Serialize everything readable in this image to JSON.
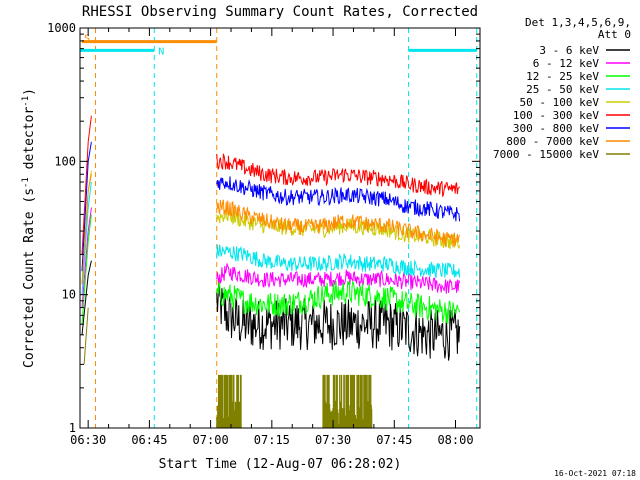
{
  "chart_data": {
    "type": "line",
    "title": "RHESSI Observing Summary Count Rates, Corrected",
    "xlabel": "Start Time (12-Aug-07 06:28:02)",
    "ylabel_main": "Corrected Count Rate (s",
    "ylabel_sup1": "-1",
    "ylabel_mid": " detector",
    "ylabel_sup2": "-1",
    "ylabel_end": ")",
    "y_scale": "log",
    "ylim": [
      1,
      1000
    ],
    "xlim_minutes": [
      0,
      98
    ],
    "x_ticks": [
      {
        "minute": 2,
        "label": "06:30"
      },
      {
        "minute": 17,
        "label": "06:45"
      },
      {
        "minute": 32,
        "label": "07:00"
      },
      {
        "minute": 47,
        "label": "07:15"
      },
      {
        "minute": 62,
        "label": "07:30"
      },
      {
        "minute": 77,
        "label": "07:45"
      },
      {
        "minute": 92,
        "label": "08:00"
      }
    ],
    "y_ticks": [
      {
        "value": 1,
        "label": "1"
      },
      {
        "value": 10,
        "label": "10"
      },
      {
        "value": 100,
        "label": "100"
      },
      {
        "value": 1000,
        "label": "1000"
      }
    ],
    "grid": false,
    "legend_header": [
      "Det 1,3,4,5,6,9,",
      "Att 0"
    ],
    "legend_position": "right",
    "footer_timestamp": "16-Oct-2021 07:18",
    "markers": [
      {
        "label": "S",
        "color": "#ff8c00",
        "minute_start": 0.5,
        "minute_end": 33.5,
        "level": 790
      },
      {
        "label": "N",
        "color": "#00e5ee",
        "minute_start": -0.2,
        "minute_end": 18.2,
        "level": 680
      }
    ],
    "marker_vlines": [
      {
        "color": "#00e5ee",
        "minute": -0.2
      },
      {
        "color": "#ff8c00",
        "minute": 3.8
      },
      {
        "color": "#00e5ee",
        "minute": 18.2
      },
      {
        "color": "#ff8c00",
        "minute": 33.5
      },
      {
        "color": "#00e5ee",
        "minute": 80.5
      },
      {
        "color": "#00e5ee",
        "minute": 97.2
      }
    ],
    "marker_hlines": [
      {
        "color": "#00e5ee",
        "minute_start": 80.5,
        "minute_end": 97.2,
        "level": 680
      }
    ],
    "series": [
      {
        "name": "3 - 6 keV",
        "color": "#000000",
        "early": [
          [
            0.5,
            5
          ],
          [
            2.0,
            14
          ],
          [
            2.8,
            18
          ]
        ],
        "points": [
          [
            33.5,
            9
          ],
          [
            36,
            7
          ],
          [
            40,
            6
          ],
          [
            45,
            6
          ],
          [
            50,
            6
          ],
          [
            55,
            6
          ],
          [
            60,
            6
          ],
          [
            65,
            6
          ],
          [
            70,
            6
          ],
          [
            75,
            6
          ],
          [
            80,
            5.5
          ],
          [
            85,
            5
          ],
          [
            90,
            5
          ],
          [
            93,
            5
          ]
        ]
      },
      {
        "name": "6 - 12 keV",
        "color": "#ff00ff",
        "early": [
          [
            0.5,
            8
          ],
          [
            2.0,
            30
          ],
          [
            2.8,
            45
          ]
        ],
        "points": [
          [
            33.5,
            13
          ],
          [
            36,
            15
          ],
          [
            40,
            14
          ],
          [
            45,
            13
          ],
          [
            50,
            13
          ],
          [
            55,
            13
          ],
          [
            60,
            13
          ],
          [
            65,
            13.5
          ],
          [
            70,
            13
          ],
          [
            75,
            13
          ],
          [
            80,
            12.5
          ],
          [
            85,
            12
          ],
          [
            90,
            11.5
          ],
          [
            93,
            11.5
          ]
        ]
      },
      {
        "name": "12 - 25 keV",
        "color": "#00ff00",
        "early": [
          [
            0.5,
            6
          ],
          [
            2.0,
            25
          ],
          [
            2.8,
            40
          ]
        ],
        "points": [
          [
            33.5,
            10
          ],
          [
            36,
            10
          ],
          [
            40,
            9
          ],
          [
            45,
            8.5
          ],
          [
            50,
            8.5
          ],
          [
            55,
            9
          ],
          [
            60,
            10
          ],
          [
            65,
            10.5
          ],
          [
            70,
            10
          ],
          [
            75,
            9.5
          ],
          [
            80,
            8.5
          ],
          [
            85,
            8
          ],
          [
            90,
            7.5
          ],
          [
            93,
            7.5
          ]
        ]
      },
      {
        "name": "25 - 50 keV",
        "color": "#00e5ee",
        "early": [
          [
            0.5,
            10
          ],
          [
            2.0,
            45
          ],
          [
            2.8,
            70
          ]
        ],
        "points": [
          [
            33.5,
            21
          ],
          [
            36,
            21
          ],
          [
            40,
            20
          ],
          [
            45,
            18
          ],
          [
            50,
            17
          ],
          [
            55,
            17
          ],
          [
            60,
            17
          ],
          [
            65,
            18
          ],
          [
            70,
            17
          ],
          [
            75,
            17
          ],
          [
            80,
            16
          ],
          [
            85,
            15.5
          ],
          [
            90,
            15
          ],
          [
            93,
            15
          ]
        ]
      },
      {
        "name": "50 - 100 keV",
        "color": "#cccc00",
        "early": [
          [
            0.5,
            12
          ],
          [
            2.0,
            60
          ],
          [
            2.8,
            85
          ]
        ],
        "points": [
          [
            33.5,
            38
          ],
          [
            36,
            40
          ],
          [
            40,
            36
          ],
          [
            45,
            33
          ],
          [
            50,
            32
          ],
          [
            55,
            31
          ],
          [
            60,
            31
          ],
          [
            65,
            33
          ],
          [
            70,
            32
          ],
          [
            75,
            31
          ],
          [
            80,
            28
          ],
          [
            85,
            27
          ],
          [
            90,
            25
          ],
          [
            93,
            25
          ]
        ]
      },
      {
        "name": "100 - 300 keV",
        "color": "#ff0000",
        "early": [
          [
            0.5,
            20
          ],
          [
            2.0,
            140
          ],
          [
            2.8,
            220
          ]
        ],
        "points": [
          [
            33.5,
            100
          ],
          [
            36,
            100
          ],
          [
            40,
            90
          ],
          [
            45,
            80
          ],
          [
            50,
            76
          ],
          [
            55,
            75
          ],
          [
            60,
            76
          ],
          [
            65,
            80
          ],
          [
            70,
            76
          ],
          [
            75,
            74
          ],
          [
            80,
            68
          ],
          [
            85,
            64
          ],
          [
            90,
            62
          ],
          [
            93,
            62
          ]
        ]
      },
      {
        "name": "300 - 800 keV",
        "color": "#0000ff",
        "early": [
          [
            0.5,
            15
          ],
          [
            2.0,
            100
          ],
          [
            2.8,
            140
          ]
        ],
        "points": [
          [
            33.5,
            70
          ],
          [
            36,
            70
          ],
          [
            40,
            64
          ],
          [
            45,
            58
          ],
          [
            50,
            54
          ],
          [
            55,
            54
          ],
          [
            60,
            54
          ],
          [
            65,
            56
          ],
          [
            70,
            54
          ],
          [
            75,
            52
          ],
          [
            80,
            46
          ],
          [
            85,
            44
          ],
          [
            90,
            41
          ],
          [
            93,
            40
          ]
        ]
      },
      {
        "name": "800 - 7000 keV",
        "color": "#ff8c00",
        "early": [
          [
            0.5,
            12
          ],
          [
            2.0,
            60
          ],
          [
            2.8,
            80
          ]
        ],
        "points": [
          [
            33.5,
            45
          ],
          [
            36,
            45
          ],
          [
            40,
            40
          ],
          [
            45,
            36
          ],
          [
            50,
            33
          ],
          [
            55,
            32
          ],
          [
            60,
            33
          ],
          [
            65,
            36
          ],
          [
            70,
            34
          ],
          [
            75,
            33
          ],
          [
            80,
            30
          ],
          [
            85,
            28
          ],
          [
            90,
            26
          ],
          [
            93,
            26
          ]
        ]
      },
      {
        "name": "7000 - 15000 keV",
        "color": "#808000",
        "early": [
          [
            1.0,
            3
          ],
          [
            2.0,
            8
          ]
        ],
        "points": [],
        "bursts": [
          [
            33.5,
            39.5,
            2.5
          ],
          [
            59.5,
            71.5,
            2.5
          ]
        ]
      }
    ]
  }
}
